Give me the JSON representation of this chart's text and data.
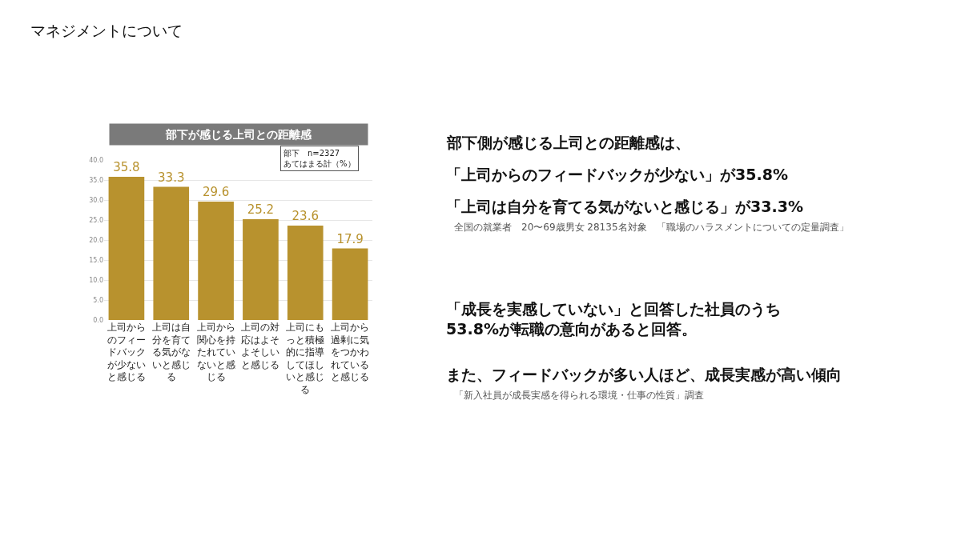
{
  "chart_data": {
    "type": "bar",
    "title": "マネジメントについて",
    "subtitle": "部下が感じる上司との距離感",
    "categories": [
      "上司からのフィードバックが少ないと感じる",
      "上司は自分を育てる気がないと感じる",
      "上司から関心を持たれていないと感じる",
      "上司の対応はよそよそしいと感じる",
      "上司にもっと積極的に指導してほしいと感じる",
      "上司から過剰に気をつかわれていると感じる"
    ],
    "values": [
      35.8,
      33.3,
      29.6,
      25.2,
      23.6,
      17.9
    ],
    "color": "#b8922e",
    "data_labels": true,
    "ylim": [
      0,
      40
    ],
    "yticks": [
      {
        "value": 0,
        "label": "0.0"
      },
      {
        "value": 5,
        "label": "5.0"
      },
      {
        "value": 10,
        "label": "10.0"
      },
      {
        "value": 15,
        "label": "15.0"
      },
      {
        "value": 20,
        "label": "20.0"
      },
      {
        "value": 25,
        "label": "25.0"
      },
      {
        "value": 30,
        "label": "30.0"
      },
      {
        "value": 35,
        "label": "35.0"
      },
      {
        "value": 40,
        "label": "40.0"
      }
    ],
    "grid": "y",
    "legend": false,
    "annotations": [
      "部下　n=2327\nあてはまる計（%）",
      "部下側が感じる上司との距離感は、",
      "「上司からのフィードバックが少ない」が35.8%",
      "「上司は自分を育てる気がないと感じる」が33.3%",
      "全国の就業者　20〜69歳男女 28135名対象　「職場のハラスメントについての定量調査」",
      "「成長を実感していない」と回答した社員のうち\n53.8%が転職の意向があると回答。",
      "また、フィードバックが多い人ほど、成長実感が高い傾向",
      "「新入社員が成長実感を得られる環境・仕事の性質」調査"
    ]
  }
}
